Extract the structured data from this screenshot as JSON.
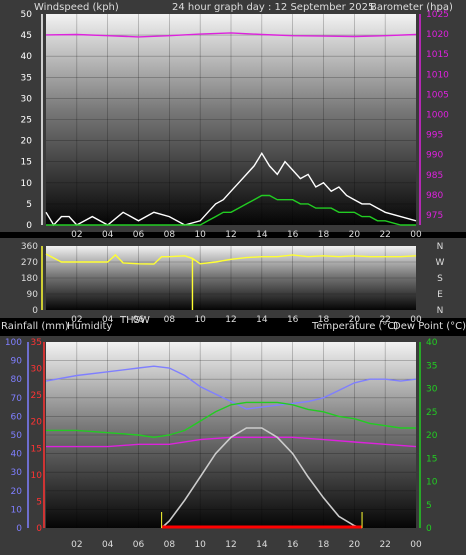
{
  "header": {
    "left": "Windspeed (kph)",
    "center": "24 hour graph day : 12 September 2025",
    "right": "Barometer (hpa)"
  },
  "mid_header": {
    "left": "Rainfall (mm)",
    "left2": "Humidity",
    "thsw": "THSW",
    "right": "Temperature (°C)",
    "right2": "Dew Point (°C)"
  },
  "compass": [
    "N",
    "W",
    "S",
    "E",
    "N"
  ],
  "colors": {
    "wind_gust": "#ffffff",
    "wind_avg": "#22cc22",
    "barometer": "#dd22dd",
    "direction": "#ffff33",
    "humidity": "#7f7fff",
    "temperature": "#22cc22",
    "dewpoint": "#dd22dd",
    "solar": "#cccccc",
    "rain": "#ff0000",
    "left_axis_wind": "#ffffff",
    "right_axis_baro": "#dd22dd",
    "rain_axis": "#ff3333",
    "humidity_axis": "#7f7fff",
    "temp_axis": "#22cc22"
  },
  "chart_data": [
    {
      "type": "line",
      "title": "24 hour graph day : 12 September 2025",
      "x_ticks": [
        "02",
        "04",
        "06",
        "08",
        "10",
        "12",
        "14",
        "16",
        "18",
        "20",
        "22",
        "00"
      ],
      "xlim": [
        0,
        24
      ],
      "y_left": {
        "label": "Windspeed (kph)",
        "ticks": [
          0,
          5,
          10,
          15,
          20,
          25,
          30,
          35,
          40,
          45,
          50
        ],
        "ylim": [
          0,
          50
        ]
      },
      "y_right": {
        "label": "Barometer (hpa)",
        "ticks": [
          975,
          980,
          985,
          990,
          995,
          1000,
          1005,
          1010,
          1015,
          1020,
          1025
        ],
        "ylim": [
          972.5,
          1025
        ]
      },
      "series": [
        {
          "name": "Barometer (hpa)",
          "axis": "right",
          "x": [
            0,
            2,
            4,
            6,
            8,
            10,
            12,
            14,
            16,
            18,
            20,
            22,
            24
          ],
          "values": [
            1019.8,
            1019.9,
            1019.6,
            1019.3,
            1019.6,
            1020.0,
            1020.3,
            1019.9,
            1019.6,
            1019.5,
            1019.4,
            1019.6,
            1019.9
          ]
        },
        {
          "name": "Windspeed (kph)",
          "axis": "left",
          "x": [
            0,
            0.5,
            1,
            1.5,
            2,
            3,
            4,
            5,
            6,
            7,
            8,
            9,
            10,
            10.5,
            11,
            11.5,
            12,
            12.5,
            13,
            13.5,
            14,
            14.5,
            15,
            15.5,
            16,
            16.5,
            17,
            17.5,
            18,
            18.5,
            19,
            19.5,
            20,
            20.5,
            21,
            21.5,
            22,
            23,
            24
          ],
          "values": [
            3,
            0,
            2,
            2,
            0,
            2,
            0,
            3,
            1,
            3,
            2,
            0,
            1,
            3,
            5,
            6,
            8,
            10,
            12,
            14,
            17,
            14,
            12,
            15,
            13,
            11,
            12,
            9,
            10,
            8,
            9,
            7,
            6,
            5,
            5,
            4,
            3,
            2,
            1
          ]
        },
        {
          "name": "Wind Gust",
          "axis": "left",
          "x": [
            0,
            0.5,
            1,
            1.5,
            2,
            3,
            4,
            5,
            6,
            7,
            8,
            9,
            10,
            10.5,
            11,
            11.5,
            12,
            12.5,
            13,
            13.5,
            14,
            14.5,
            15,
            15.5,
            16,
            16.5,
            17,
            17.5,
            18,
            18.5,
            19,
            19.5,
            20,
            20.5,
            21,
            21.5,
            22,
            23,
            24
          ],
          "values": [
            0,
            0,
            0,
            0,
            0,
            0,
            0,
            0,
            0,
            0,
            0,
            0,
            0,
            1,
            2,
            3,
            3,
            4,
            5,
            6,
            7,
            7,
            6,
            6,
            6,
            5,
            5,
            4,
            4,
            4,
            3,
            3,
            3,
            2,
            2,
            1,
            1,
            0,
            0
          ]
        }
      ]
    },
    {
      "type": "line",
      "x_ticks": [
        "02",
        "04",
        "06",
        "08",
        "10",
        "12",
        "14",
        "16",
        "18",
        "20",
        "22",
        "00"
      ],
      "xlim": [
        0,
        24
      ],
      "y_left": {
        "ticks": [
          0,
          90,
          180,
          270,
          360
        ],
        "ylim": [
          0,
          360
        ]
      },
      "y_right": {
        "ticks": [
          "N",
          "W",
          "S",
          "E",
          "N"
        ]
      },
      "series": [
        {
          "name": "Wind direction",
          "x": [
            0,
            1,
            2,
            3,
            4,
            4.5,
            5,
            6,
            7,
            7.5,
            8,
            9,
            9.5,
            10,
            11,
            12,
            13,
            14,
            15,
            16,
            17,
            18,
            19,
            20,
            21,
            22,
            23,
            24
          ],
          "values": [
            315,
            270,
            270,
            270,
            270,
            310,
            265,
            260,
            258,
            300,
            300,
            305,
            290,
            260,
            270,
            285,
            295,
            300,
            300,
            310,
            300,
            305,
            300,
            305,
            300,
            300,
            300,
            305
          ]
        }
      ]
    },
    {
      "type": "line",
      "x_ticks": [
        "02",
        "04",
        "06",
        "08",
        "10",
        "12",
        "14",
        "16",
        "18",
        "20",
        "22",
        "00"
      ],
      "xlim": [
        0,
        24
      ],
      "y_rain": {
        "label": "Rainfall (mm)",
        "ticks": [
          0,
          5,
          10,
          15,
          20,
          25,
          30,
          35
        ],
        "ylim": [
          0,
          35
        ]
      },
      "y_humidity": {
        "label": "Humidity",
        "ticks": [
          0,
          10,
          20,
          30,
          40,
          50,
          60,
          70,
          80,
          90,
          100
        ],
        "ylim": [
          0,
          100
        ]
      },
      "y_temp": {
        "label": "Temperature (°C)",
        "ticks": [
          0,
          5,
          10,
          15,
          20,
          25,
          30,
          35,
          40
        ],
        "ylim": [
          0,
          40
        ]
      },
      "series": [
        {
          "name": "Humidity",
          "axis": "humidity",
          "x": [
            0,
            2,
            4,
            6,
            7,
            8,
            9,
            10,
            11,
            12,
            13,
            14,
            15,
            16,
            17,
            18,
            19,
            20,
            21,
            22,
            23,
            24
          ],
          "values": [
            79,
            82,
            84,
            86,
            87,
            86,
            82,
            76,
            72,
            68,
            64,
            65,
            66,
            67,
            68,
            70,
            74,
            78,
            80,
            80,
            79,
            80
          ]
        },
        {
          "name": "Temperature (°C)",
          "axis": "temp",
          "x": [
            0,
            2,
            4,
            6,
            7,
            8,
            9,
            10,
            11,
            12,
            13,
            14,
            15,
            16,
            17,
            18,
            19,
            20,
            21,
            22,
            23,
            24
          ],
          "values": [
            21,
            21,
            20.5,
            20,
            19.5,
            20,
            21,
            23,
            25,
            26.5,
            27,
            27,
            27,
            26.5,
            25.5,
            25,
            24,
            23.5,
            22.5,
            22,
            21.5,
            21.5
          ]
        },
        {
          "name": "Dew Point (°C)",
          "axis": "temp",
          "x": [
            0,
            2,
            4,
            6,
            8,
            10,
            12,
            14,
            16,
            18,
            20,
            22,
            24
          ],
          "values": [
            17.5,
            17.5,
            17.5,
            18,
            18,
            19,
            19.5,
            19.5,
            19.5,
            19,
            18.5,
            18,
            17.5
          ]
        },
        {
          "name": "THSW",
          "axis": "temp",
          "x": [
            7.5,
            8,
            9,
            10,
            11,
            12,
            13,
            14,
            15,
            16,
            17,
            18,
            19,
            20,
            20.5
          ],
          "values": [
            0,
            1.5,
            6,
            11,
            16,
            19.5,
            21.5,
            21.5,
            19.5,
            16,
            11,
            6.5,
            2.5,
            0.5,
            0
          ]
        },
        {
          "name": "Rainfall (mm)",
          "axis": "rain",
          "x": [
            7.5,
            20.5
          ],
          "values": [
            0,
            0
          ]
        }
      ]
    }
  ]
}
